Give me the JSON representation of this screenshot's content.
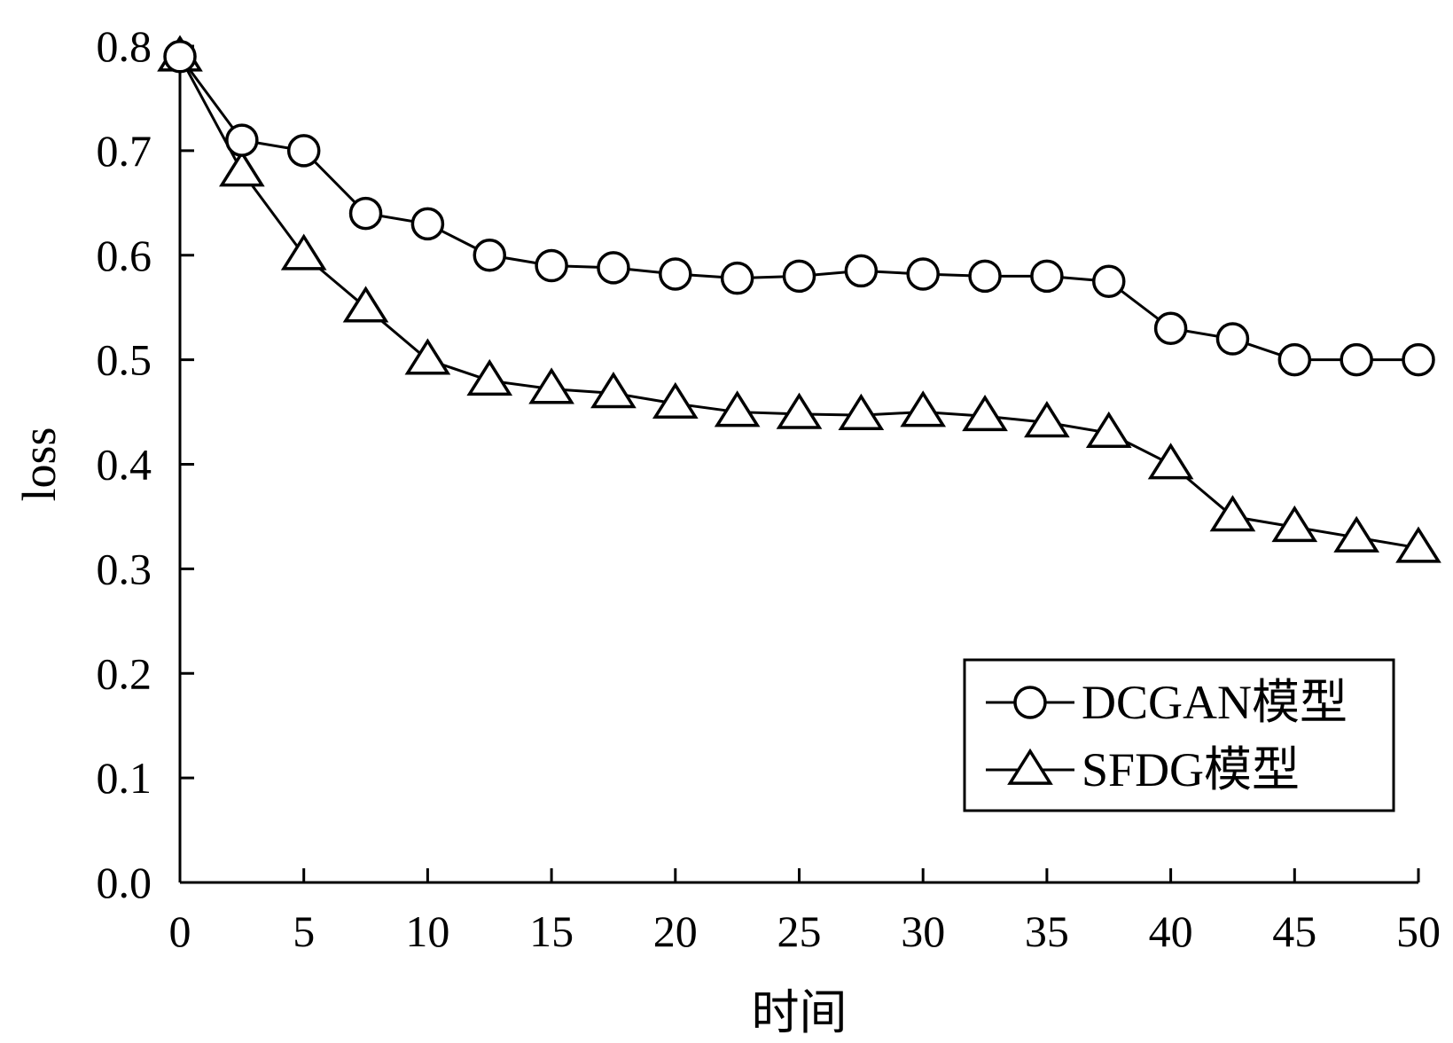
{
  "chart_data": {
    "type": "line",
    "title": "",
    "xlabel": "时间",
    "ylabel": "loss",
    "xlim": [
      0,
      50
    ],
    "ylim": [
      0.0,
      0.8
    ],
    "xticks": [
      0,
      5,
      10,
      15,
      20,
      25,
      30,
      35,
      40,
      45,
      50
    ],
    "xtick_labels": [
      "0",
      "5",
      "10",
      "15",
      "20",
      "25",
      "30",
      "35",
      "40",
      "45",
      "50"
    ],
    "yticks": [
      0.0,
      0.1,
      0.2,
      0.3,
      0.4,
      0.5,
      0.6,
      0.7,
      0.8
    ],
    "ytick_labels": [
      "0.0",
      "0.1",
      "0.2",
      "0.3",
      "0.4",
      "0.5",
      "0.6",
      "0.7",
      "0.8"
    ],
    "grid": false,
    "legend_position": "bottom-right",
    "x": [
      0,
      2.5,
      5,
      7.5,
      10,
      12.5,
      15,
      17.5,
      20,
      22.5,
      25,
      27.5,
      30,
      32.5,
      35,
      37.5,
      40,
      42.5,
      45,
      47.5,
      50
    ],
    "series": [
      {
        "name": "DCGAN模型",
        "marker": "circle",
        "color": "#000000",
        "values": [
          0.79,
          0.71,
          0.7,
          0.64,
          0.63,
          0.6,
          0.59,
          0.588,
          0.582,
          0.578,
          0.58,
          0.585,
          0.582,
          0.58,
          0.58,
          0.575,
          0.53,
          0.52,
          0.5,
          0.5,
          0.5
        ]
      },
      {
        "name": "SFDG模型",
        "marker": "triangle",
        "color": "#000000",
        "values": [
          0.79,
          0.68,
          0.6,
          0.55,
          0.5,
          0.48,
          0.472,
          0.468,
          0.458,
          0.45,
          0.448,
          0.447,
          0.45,
          0.446,
          0.44,
          0.43,
          0.4,
          0.35,
          0.34,
          0.33,
          0.32
        ]
      }
    ]
  }
}
